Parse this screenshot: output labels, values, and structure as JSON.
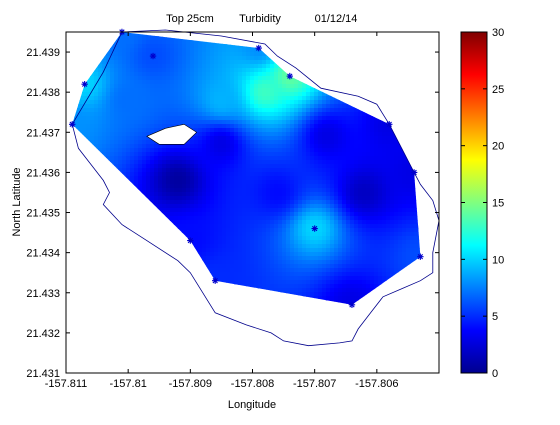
{
  "chart_data": {
    "type": "heatmap",
    "title_parts": [
      "Top 25cm",
      "Turbidity",
      "01/12/14"
    ],
    "xlabel": "Longitude",
    "ylabel": "North Latitude",
    "xlim": [
      -157.811,
      -157.805
    ],
    "ylim": [
      21.431,
      21.4395
    ],
    "x_ticks": [
      -157.811,
      -157.81,
      -157.809,
      -157.808,
      -157.807,
      -157.806
    ],
    "x_tick_labels": [
      "-157.811",
      "-157.81",
      "-157.809",
      "-157.808",
      "-157.807",
      "-157.806"
    ],
    "y_ticks": [
      21.431,
      21.432,
      21.433,
      21.434,
      21.435,
      21.436,
      21.437,
      21.438,
      21.439
    ],
    "y_tick_labels": [
      "21.431",
      "21.432",
      "21.433",
      "21.434",
      "21.435",
      "21.436",
      "21.437",
      "21.438",
      "21.439"
    ],
    "colorbar": {
      "range": [
        0,
        30
      ],
      "ticks": [
        0,
        5,
        10,
        15,
        20,
        25,
        30
      ],
      "tick_labels": [
        "0",
        "5",
        "10",
        "15",
        "20",
        "25",
        "30"
      ],
      "colormap": "jet"
    },
    "stations": [
      {
        "lon": -157.8101,
        "lat": 21.4395,
        "value": 7
      },
      {
        "lon": -157.8096,
        "lat": 21.4389,
        "value": 6
      },
      {
        "lon": -157.8079,
        "lat": 21.4391,
        "value": 8
      },
      {
        "lon": -157.8074,
        "lat": 21.4384,
        "value": 14
      },
      {
        "lon": -157.8107,
        "lat": 21.4382,
        "value": 10
      },
      {
        "lon": -157.8109,
        "lat": 21.4372,
        "value": 8
      },
      {
        "lon": -157.8058,
        "lat": 21.4372,
        "value": 3
      },
      {
        "lon": -157.8054,
        "lat": 21.436,
        "value": 3
      },
      {
        "lon": -157.807,
        "lat": 21.4346,
        "value": 10
      },
      {
        "lon": -157.809,
        "lat": 21.4343,
        "value": 4
      },
      {
        "lon": -157.8053,
        "lat": 21.4339,
        "value": 6
      },
      {
        "lon": -157.8086,
        "lat": 21.4333,
        "value": 5
      },
      {
        "lon": -157.8064,
        "lat": 21.4327,
        "value": 3
      }
    ],
    "interior_estimates": [
      {
        "lon": -157.8092,
        "lat": 21.4358,
        "value": 1
      },
      {
        "lon": -157.8085,
        "lat": 21.4367,
        "value": 3
      },
      {
        "lon": -157.8068,
        "lat": 21.4369,
        "value": 3
      },
      {
        "lon": -157.8076,
        "lat": 21.4355,
        "value": 4
      },
      {
        "lon": -157.8062,
        "lat": 21.4355,
        "value": 2
      },
      {
        "lon": -157.8085,
        "lat": 21.4378,
        "value": 9
      },
      {
        "lon": -157.8078,
        "lat": 21.438,
        "value": 13
      },
      {
        "lon": -157.81,
        "lat": 21.4378,
        "value": 7
      }
    ],
    "interpolated_region": [
      [
        -157.8109,
        21.4372
      ],
      [
        -157.8107,
        21.4382
      ],
      [
        -157.8101,
        21.4395
      ],
      [
        -157.8079,
        21.4391
      ],
      [
        -157.8074,
        21.4384
      ],
      [
        -157.8058,
        21.4372
      ],
      [
        -157.8054,
        21.436
      ],
      [
        -157.8053,
        21.4339
      ],
      [
        -157.8064,
        21.4327
      ],
      [
        -157.8086,
        21.4333
      ],
      [
        -157.809,
        21.4343
      ]
    ],
    "island": [
      [
        -157.8097,
        21.4369
      ],
      [
        -157.8094,
        21.4371
      ],
      [
        -157.8091,
        21.4372
      ],
      [
        -157.8089,
        21.437
      ],
      [
        -157.8091,
        21.4367
      ],
      [
        -157.8095,
        21.4367
      ]
    ],
    "shoreline": [
      [
        -157.8109,
        21.4372
      ],
      [
        -157.8104,
        21.4385
      ],
      [
        -157.8101,
        21.4395
      ],
      [
        -157.8094,
        21.43955
      ],
      [
        -157.8085,
        21.4394
      ],
      [
        -157.8078,
        21.4392
      ],
      [
        -157.8076,
        21.4389
      ],
      [
        -157.8073,
        21.4386
      ],
      [
        -157.8069,
        21.4381
      ],
      [
        -157.8063,
        21.4379
      ],
      [
        -157.806,
        21.4377
      ],
      [
        -157.8058,
        21.4372
      ],
      [
        -157.8056,
        21.4366
      ],
      [
        -157.8054,
        21.436
      ],
      [
        -157.8053,
        21.4357
      ],
      [
        -157.8051,
        21.4353
      ],
      [
        -157.805,
        21.4348
      ],
      [
        -157.8051,
        21.434
      ],
      [
        -157.8051,
        21.4335
      ],
      [
        -157.8053,
        21.4333
      ],
      [
        -157.8056,
        21.4331
      ],
      [
        -157.8059,
        21.4329
      ],
      [
        -157.8061,
        21.4325
      ],
      [
        -157.8063,
        21.4321
      ],
      [
        -157.8064,
        21.4318
      ],
      [
        -157.8066,
        21.43175
      ],
      [
        -157.8071,
        21.43168
      ],
      [
        -157.8075,
        21.4318
      ],
      [
        -157.8077,
        21.432
      ],
      [
        -157.8081,
        21.4322
      ],
      [
        -157.8086,
        21.4325
      ],
      [
        -157.8088,
        21.433
      ],
      [
        -157.809,
        21.4335
      ],
      [
        -157.8092,
        21.4338
      ],
      [
        -157.8097,
        21.4343
      ],
      [
        -157.8101,
        21.4347
      ],
      [
        -157.8104,
        21.4352
      ],
      [
        -157.8103,
        21.4355
      ],
      [
        -157.8104,
        21.4358
      ],
      [
        -157.8106,
        21.4362
      ],
      [
        -157.8108,
        21.4366
      ],
      [
        -157.8109,
        21.4372
      ]
    ]
  }
}
